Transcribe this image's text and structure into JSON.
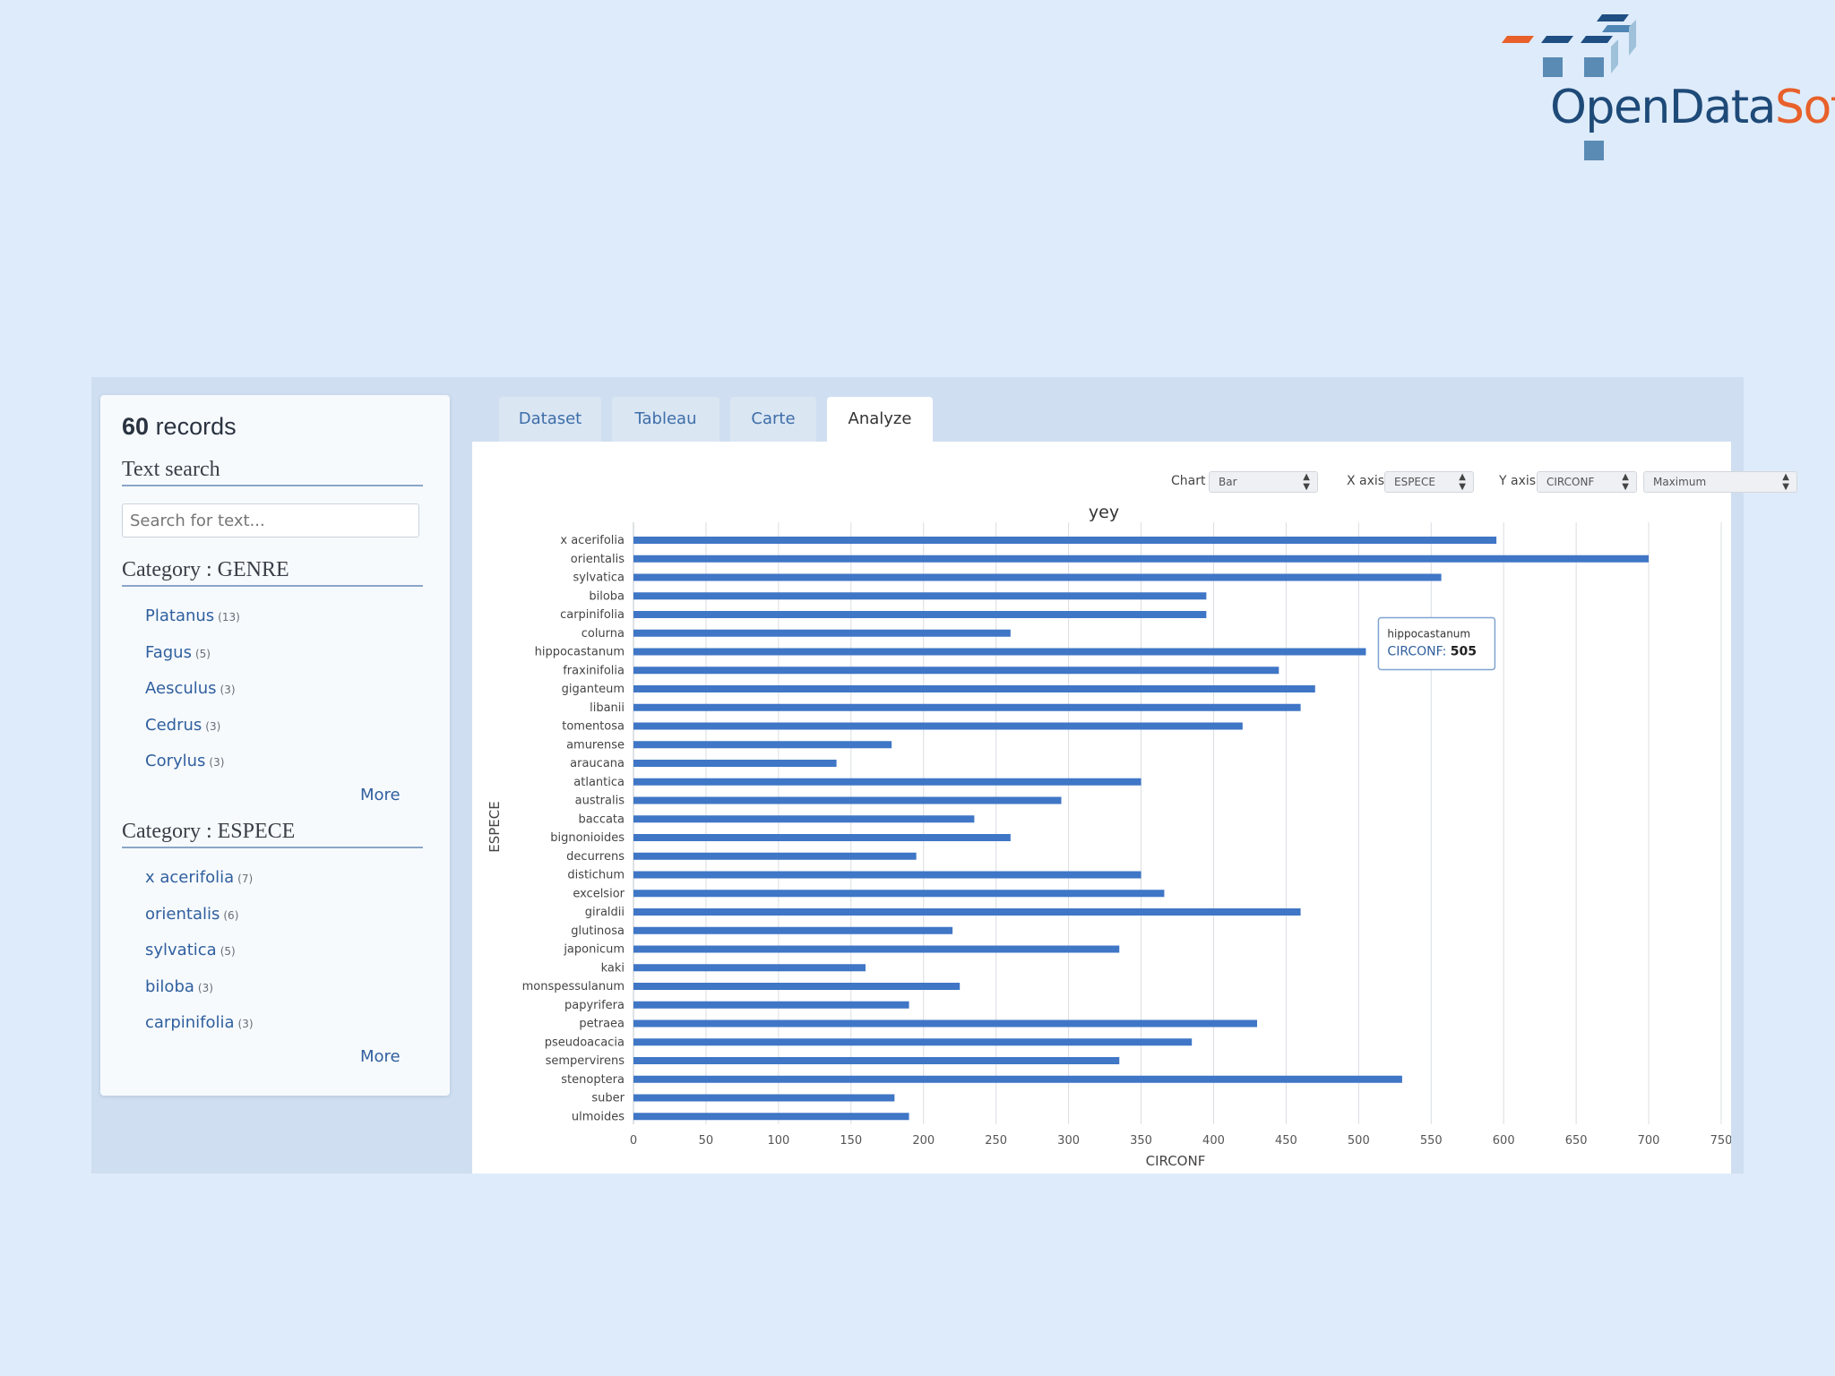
{
  "logo": {
    "text_a": "OpenData",
    "text_b": "Soft"
  },
  "sidebar": {
    "record_count": "60",
    "record_word": "records",
    "text_search_title": "Text search",
    "search_placeholder": "Search for text...",
    "genre": {
      "title": "Category : GENRE",
      "items": [
        {
          "label": "Platanus",
          "count": "(13)"
        },
        {
          "label": "Fagus",
          "count": "(5)"
        },
        {
          "label": "Aesculus",
          "count": "(3)"
        },
        {
          "label": "Cedrus",
          "count": "(3)"
        },
        {
          "label": "Corylus",
          "count": "(3)"
        }
      ],
      "more": "More"
    },
    "espece": {
      "title": "Category : ESPECE",
      "items": [
        {
          "label": "x acerifolia",
          "count": "(7)"
        },
        {
          "label": "orientalis",
          "count": "(6)"
        },
        {
          "label": "sylvatica",
          "count": "(5)"
        },
        {
          "label": "biloba",
          "count": "(3)"
        },
        {
          "label": "carpinifolia",
          "count": "(3)"
        }
      ],
      "more": "More"
    }
  },
  "tabs": [
    "Dataset",
    "Tableau",
    "Carte",
    "Analyze"
  ],
  "active_tab": "Analyze",
  "controls": {
    "chart_label": "Chart",
    "chart_value": "Bar",
    "xaxis_label": "X axis",
    "xaxis_value": "ESPECE",
    "yaxis_label": "Y axis",
    "yaxis_value": "CIRCONF",
    "agg_value": "Maximum"
  },
  "tooltip": {
    "category": "hippocastanum",
    "field": "CIRCONF",
    "value": "505"
  },
  "colors": {
    "bar": "#3f76c6",
    "accent": "#2f5f9e",
    "background": "#deebfa"
  },
  "chart_data": {
    "type": "bar",
    "orientation": "horizontal",
    "title": "yey",
    "xlabel": "CIRCONF",
    "ylabel": "ESPECE",
    "xlim": [
      0,
      750
    ],
    "xticks": [
      0,
      50,
      100,
      150,
      200,
      250,
      300,
      350,
      400,
      450,
      500,
      550,
      600,
      650,
      700,
      750
    ],
    "grid": true,
    "categories": [
      "x acerifolia",
      "orientalis",
      "sylvatica",
      "biloba",
      "carpinifolia",
      "colurna",
      "hippocastanum",
      "fraxinifolia",
      "giganteum",
      "libanii",
      "tomentosa",
      "amurense",
      "araucana",
      "atlantica",
      "australis",
      "baccata",
      "bignonioides",
      "decurrens",
      "distichum",
      "excelsior",
      "giraldii",
      "glutinosa",
      "japonicum",
      "kaki",
      "monspessulanum",
      "papyrifera",
      "petraea",
      "pseudoacacia",
      "sempervirens",
      "stenoptera",
      "suber",
      "ulmoides"
    ],
    "values": [
      595,
      700,
      557,
      395,
      395,
      260,
      505,
      445,
      470,
      460,
      420,
      178,
      140,
      350,
      295,
      235,
      260,
      195,
      350,
      366,
      460,
      220,
      335,
      160,
      225,
      190,
      430,
      385,
      335,
      530,
      180,
      190
    ]
  }
}
